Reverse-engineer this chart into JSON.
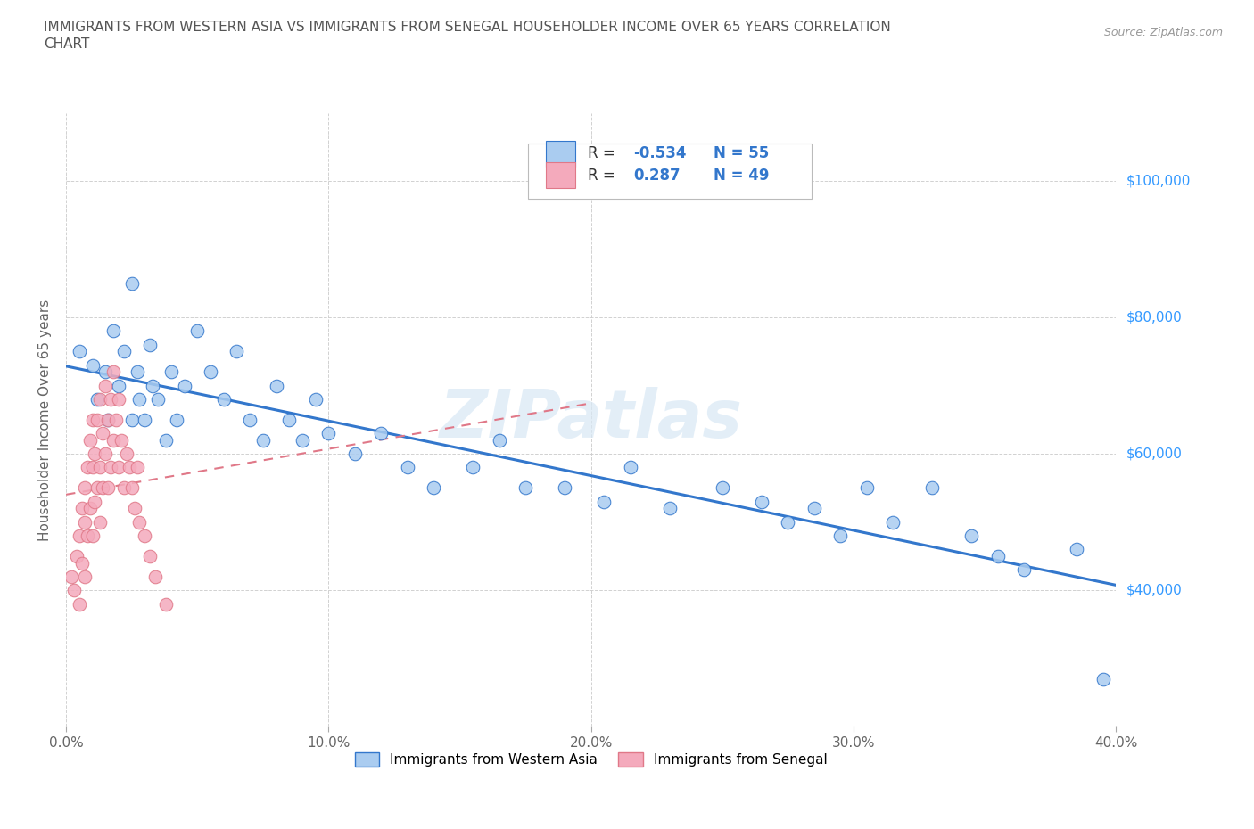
{
  "title_line1": "IMMIGRANTS FROM WESTERN ASIA VS IMMIGRANTS FROM SENEGAL HOUSEHOLDER INCOME OVER 65 YEARS CORRELATION",
  "title_line2": "CHART",
  "source_text": "Source: ZipAtlas.com",
  "ylabel": "Householder Income Over 65 years",
  "xlim": [
    0.0,
    0.4
  ],
  "ylim": [
    20000,
    110000
  ],
  "x_ticks": [
    0.0,
    0.1,
    0.2,
    0.3,
    0.4
  ],
  "x_tick_labels": [
    "0.0%",
    "10.0%",
    "20.0%",
    "30.0%",
    "40.0%"
  ],
  "y_ticks": [
    20000,
    40000,
    60000,
    80000,
    100000
  ],
  "y_tick_labels": [
    "",
    "$40,000",
    "$60,000",
    "$80,000",
    "$100,000"
  ],
  "watermark": "ZIPatlas",
  "color_western_asia": "#aaccf0",
  "color_senegal": "#f4aabc",
  "trendline_color_western_asia": "#3377cc",
  "trendline_color_senegal": "#e07888",
  "legend_color": "#3377cc",
  "wa_x": [
    0.005,
    0.01,
    0.012,
    0.015,
    0.016,
    0.018,
    0.02,
    0.022,
    0.025,
    0.025,
    0.027,
    0.028,
    0.03,
    0.032,
    0.033,
    0.035,
    0.038,
    0.04,
    0.042,
    0.045,
    0.05,
    0.055,
    0.06,
    0.065,
    0.07,
    0.075,
    0.08,
    0.085,
    0.09,
    0.095,
    0.1,
    0.11,
    0.12,
    0.13,
    0.14,
    0.155,
    0.165,
    0.175,
    0.19,
    0.205,
    0.215,
    0.23,
    0.25,
    0.265,
    0.275,
    0.285,
    0.295,
    0.305,
    0.315,
    0.33,
    0.345,
    0.355,
    0.365,
    0.385,
    0.395
  ],
  "wa_y": [
    75000,
    73000,
    68000,
    72000,
    65000,
    78000,
    70000,
    75000,
    85000,
    65000,
    72000,
    68000,
    65000,
    76000,
    70000,
    68000,
    62000,
    72000,
    65000,
    70000,
    78000,
    72000,
    68000,
    75000,
    65000,
    62000,
    70000,
    65000,
    62000,
    68000,
    63000,
    60000,
    63000,
    58000,
    55000,
    58000,
    62000,
    55000,
    55000,
    53000,
    58000,
    52000,
    55000,
    53000,
    50000,
    52000,
    48000,
    55000,
    50000,
    55000,
    48000,
    45000,
    43000,
    46000,
    27000
  ],
  "sn_x": [
    0.002,
    0.003,
    0.004,
    0.005,
    0.005,
    0.006,
    0.006,
    0.007,
    0.007,
    0.007,
    0.008,
    0.008,
    0.009,
    0.009,
    0.01,
    0.01,
    0.01,
    0.011,
    0.011,
    0.012,
    0.012,
    0.013,
    0.013,
    0.013,
    0.014,
    0.014,
    0.015,
    0.015,
    0.016,
    0.016,
    0.017,
    0.017,
    0.018,
    0.018,
    0.019,
    0.02,
    0.02,
    0.021,
    0.022,
    0.023,
    0.024,
    0.025,
    0.026,
    0.027,
    0.028,
    0.03,
    0.032,
    0.034,
    0.038
  ],
  "sn_y": [
    42000,
    40000,
    45000,
    48000,
    38000,
    52000,
    44000,
    55000,
    50000,
    42000,
    58000,
    48000,
    62000,
    52000,
    65000,
    58000,
    48000,
    60000,
    53000,
    65000,
    55000,
    68000,
    58000,
    50000,
    63000,
    55000,
    70000,
    60000,
    65000,
    55000,
    68000,
    58000,
    72000,
    62000,
    65000,
    68000,
    58000,
    62000,
    55000,
    60000,
    58000,
    55000,
    52000,
    58000,
    50000,
    48000,
    45000,
    42000,
    38000
  ]
}
